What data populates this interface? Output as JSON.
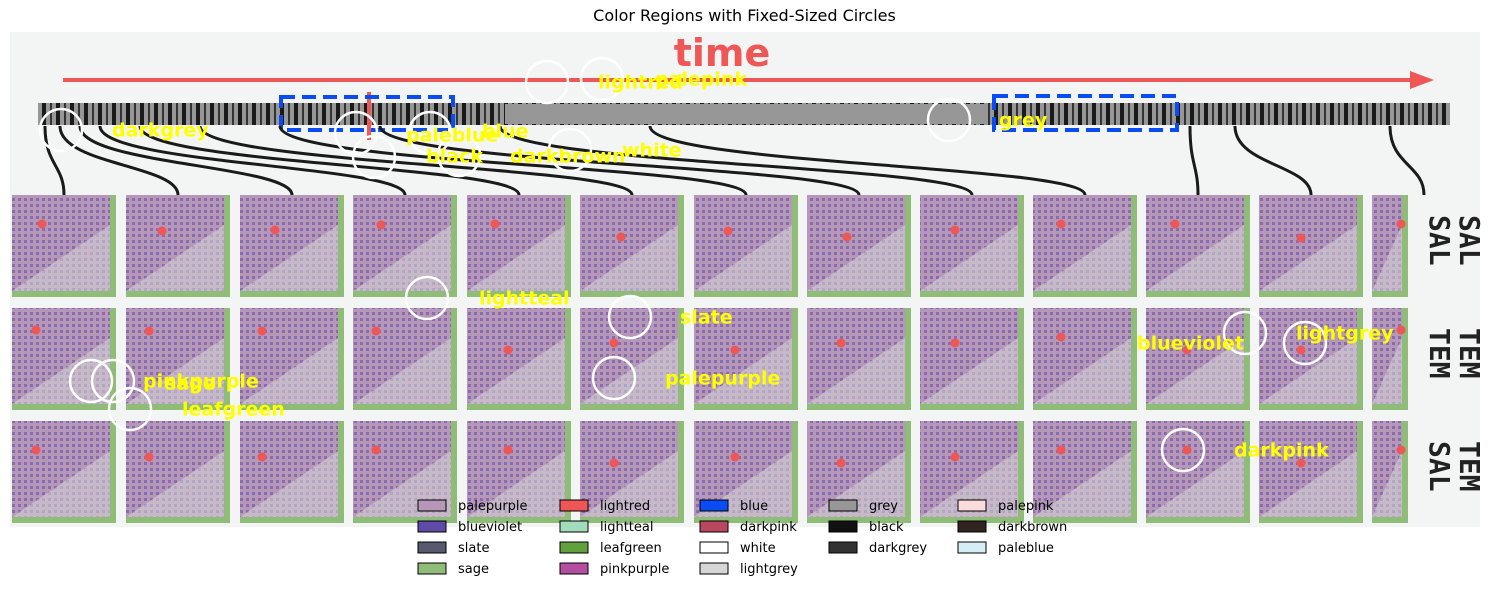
{
  "chart_data": {
    "type": "annotated-image",
    "title": "Color Regions with Fixed-Sized Circles",
    "image_text": {
      "time_label": "time",
      "row_labels": [
        [
          "SAL",
          "SAL"
        ],
        [
          "TEM",
          "TEM"
        ],
        [
          "TEM",
          "SAL"
        ]
      ]
    },
    "region_labels": [
      "lightred",
      "palepink",
      "darkgrey",
      "paleblue",
      "blue",
      "black",
      "darkbrown",
      "white",
      "grey",
      "lightteal",
      "slate",
      "blueviolet",
      "lightgrey",
      "pinkpurple",
      "sage",
      "leafgreen",
      "palepurple",
      "darkpink"
    ],
    "legend": {
      "columns": [
        [
          {
            "label": "palepurple",
            "color": "#b697b8"
          },
          {
            "label": "blueviolet",
            "color": "#5f4aa8"
          },
          {
            "label": "slate",
            "color": "#555a6e"
          },
          {
            "label": "sage",
            "color": "#8fbd78"
          }
        ],
        [
          {
            "label": "lightred",
            "color": "#ef5656"
          },
          {
            "label": "lightteal",
            "color": "#a3dcbc"
          },
          {
            "label": "leafgreen",
            "color": "#62a03e"
          },
          {
            "label": "pinkpurple",
            "color": "#b44ea3"
          }
        ],
        [
          {
            "label": "blue",
            "color": "#0a4cf4"
          },
          {
            "label": "darkpink",
            "color": "#b74860"
          },
          {
            "label": "white",
            "color": "#ffffff"
          },
          {
            "label": "lightgrey",
            "color": "#d6d6d6"
          }
        ],
        [
          {
            "label": "grey",
            "color": "#979797"
          },
          {
            "label": "black",
            "color": "#111111"
          },
          {
            "label": "darkgrey",
            "color": "#333333"
          }
        ],
        [
          {
            "label": "palepink",
            "color": "#fbdcdc"
          },
          {
            "label": "darkbrown",
            "color": "#2f241f"
          },
          {
            "label": "paleblue",
            "color": "#d5eef6"
          }
        ]
      ]
    },
    "colors": {
      "annotation_text": "#ffff00",
      "circle": "#ffffff",
      "background": "#f3f5f4",
      "time_arrow": "#ef5656",
      "dashed_box": "#0a4cf4",
      "matrix_fill": "#b697b8",
      "matrix_dark": "#5f4aa8",
      "matrix_border": "#8fbd78",
      "dot": "#ef5656"
    }
  }
}
